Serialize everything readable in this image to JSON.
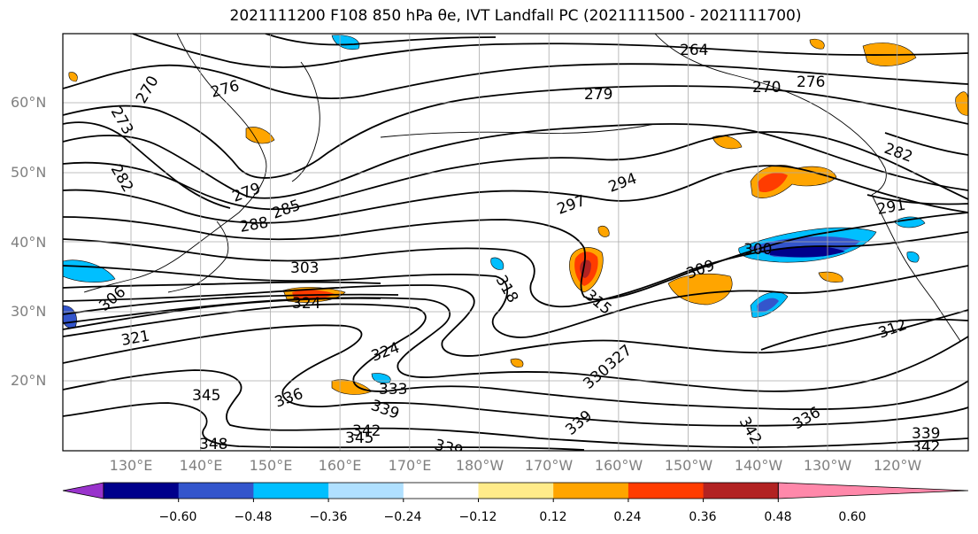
{
  "title": "2021111200 F108 850 hPa θe, IVT Landfall PC (2021111500 - 2021111700)",
  "lat_labels": [
    "60°N",
    "50°N",
    "40°N",
    "30°N",
    "20°N"
  ],
  "lon_labels": [
    "130°E",
    "140°E",
    "150°E",
    "160°E",
    "170°E",
    "180°W",
    "170°W",
    "160°W",
    "150°W",
    "140°W",
    "130°W",
    "120°W"
  ],
  "contour_labels": [
    "264",
    "270",
    "273",
    "276",
    "279",
    "282",
    "285",
    "288",
    "291",
    "294",
    "297",
    "300",
    "303",
    "306",
    "309",
    "312",
    "315",
    "318",
    "321",
    "324",
    "327",
    "330",
    "333",
    "336",
    "339",
    "342",
    "345",
    "348"
  ],
  "colorbar": {
    "ticks": [
      "−0.60",
      "−0.48",
      "−0.36",
      "−0.24",
      "−0.12",
      "0.12",
      "0.24",
      "0.36",
      "0.48",
      "0.60"
    ],
    "colors": [
      "#9933cc",
      "#00008b",
      "#3355cc",
      "#00bfff",
      "#b0e0ff",
      "#ffffff",
      "#ffeb8a",
      "#ffa500",
      "#ff3c00",
      "#b22222",
      "#ff88aa"
    ]
  }
}
